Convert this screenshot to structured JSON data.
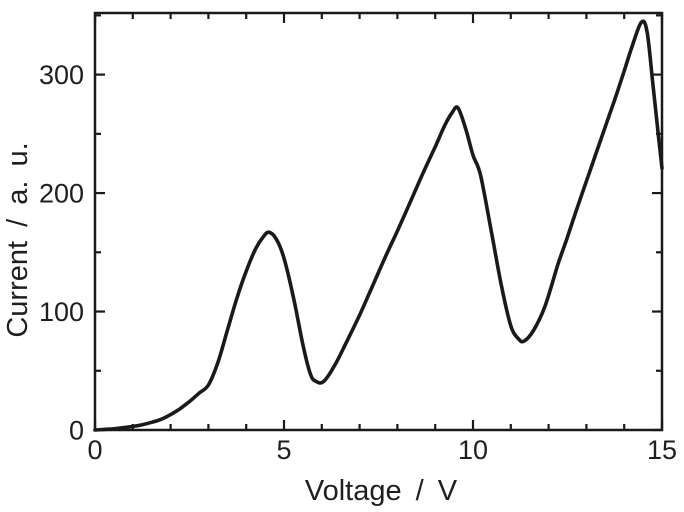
{
  "figure": {
    "background": "#ffffff",
    "colors": {
      "curve": "#1a1a1a",
      "axis": "#1a1a1a",
      "text": "#1f1f1f"
    }
  },
  "chart_data": {
    "type": "line",
    "title": "",
    "xlabel": "Voltage / V",
    "ylabel": "Current / a. u.",
    "xlim": [
      0,
      15
    ],
    "ylim": [
      0,
      352
    ],
    "grid": false,
    "legend": null,
    "frame": "full box with inward ticks mirrored on top and right axes",
    "x_major_ticks": [
      0,
      5,
      10,
      15
    ],
    "x_tick_labels": [
      "0",
      "5",
      "10",
      "15"
    ],
    "x_minor_tick_step": 1,
    "y_major_ticks": [
      0,
      100,
      200,
      300
    ],
    "y_tick_labels": [
      "0",
      "100",
      "200",
      "300"
    ],
    "y_minor_tick_step": 50,
    "series": [
      {
        "name": "current-vs-voltage-curve",
        "color": "#1a1a1a",
        "x": [
          0,
          0.25,
          0.5,
          0.75,
          1,
          1.25,
          1.5,
          1.75,
          2,
          2.25,
          2.5,
          2.75,
          3,
          3.25,
          3.5,
          3.75,
          4,
          4.25,
          4.45,
          4.6,
          4.8,
          5,
          5.25,
          5.5,
          5.7,
          5.85,
          6.05,
          6.35,
          6.65,
          7,
          7.25,
          7.5,
          7.75,
          8,
          8.25,
          8.5,
          8.75,
          9,
          9.25,
          9.45,
          9.6,
          9.8,
          10,
          10.2,
          10.5,
          10.75,
          11,
          11.2,
          11.35,
          11.6,
          11.9,
          12.25,
          12.5,
          12.75,
          13,
          13.25,
          13.5,
          13.75,
          14,
          14.2,
          14.45,
          14.6,
          14.75,
          14.9,
          15
        ],
        "y": [
          0,
          0.5,
          1,
          2,
          3,
          4.5,
          6.5,
          9,
          13,
          18,
          24,
          31,
          38,
          57,
          84,
          111,
          134,
          153,
          163,
          167,
          161,
          145,
          112,
          72,
          47,
          41,
          41,
          55,
          74,
          97,
          115,
          133,
          151,
          168,
          186,
          204,
          222,
          239,
          257,
          268,
          272,
          255,
          232,
          215,
          165,
          122,
          88,
          77,
          75,
          84,
          104,
          140,
          163,
          187,
          210,
          233,
          256,
          279,
          303,
          323,
          344,
          337,
          295,
          250,
          221
        ]
      }
    ],
    "peaks_approx": [
      {
        "voltage": 4.6,
        "current": 167
      },
      {
        "voltage": 9.6,
        "current": 272
      },
      {
        "voltage": 14.45,
        "current": 344
      }
    ],
    "dips_approx": [
      {
        "voltage": 5.9,
        "current": 40
      },
      {
        "voltage": 11.3,
        "current": 75
      }
    ]
  }
}
